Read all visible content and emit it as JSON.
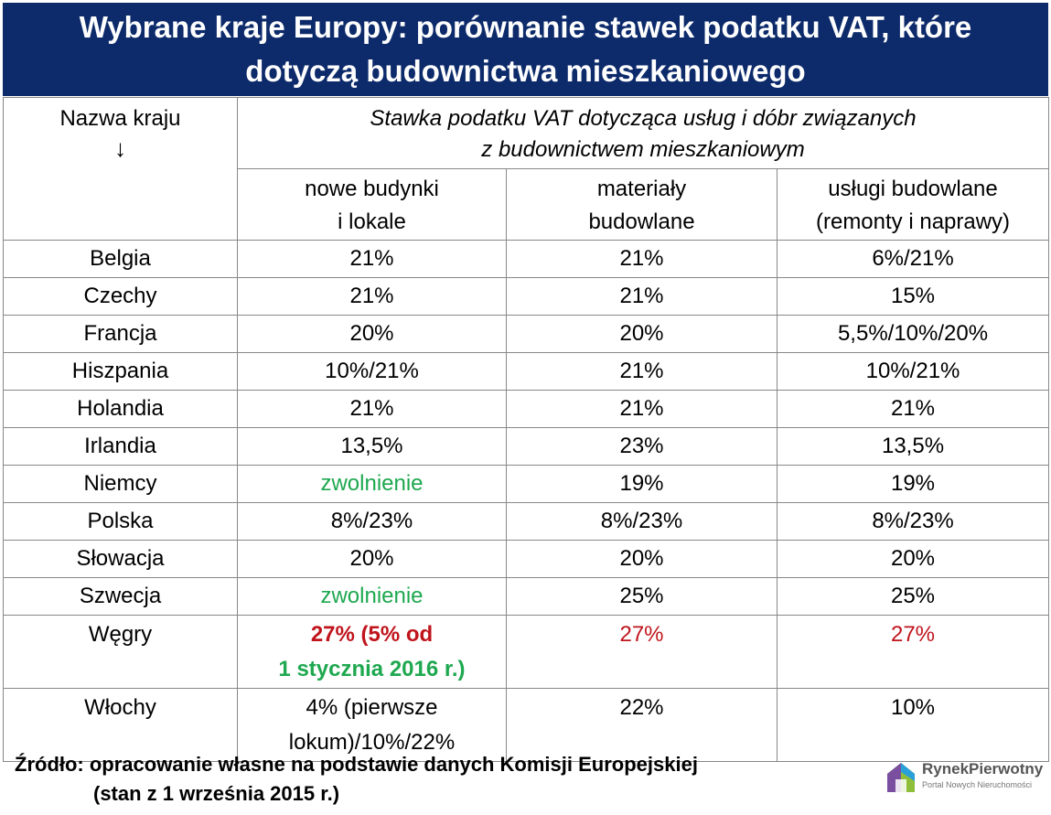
{
  "title": {
    "line1": "Wybrane kraje Europy: porównanie stawek podatku VAT, które",
    "line2": "dotyczą budownictwa mieszkaniowego"
  },
  "header": {
    "country_col": "Nazwa kraju",
    "arrow": "↓",
    "group_line1": "Stawka podatku VAT dotycząca usług i dóbr związanych",
    "group_line2": "z budownictwem mieszkaniowym",
    "col1_line1": "nowe budynki",
    "col1_line2": "i lokale",
    "col2_line1": "materiały",
    "col2_line2": "budowlane",
    "col3_line1": "usługi budowlane",
    "col3_line2": "(remonty i naprawy)"
  },
  "rows": [
    {
      "country": "Belgia",
      "c1": "21%",
      "c2": "21%",
      "c3": "6%/21%"
    },
    {
      "country": "Czechy",
      "c1": "21%",
      "c2": "21%",
      "c3": "15%"
    },
    {
      "country": "Francja",
      "c1": "20%",
      "c2": "20%",
      "c3": "5,5%/10%/20%"
    },
    {
      "country": "Hiszpania",
      "c1": "10%/21%",
      "c2": "21%",
      "c3": "10%/21%"
    },
    {
      "country": "Holandia",
      "c1": "21%",
      "c2": "21%",
      "c3": "21%"
    },
    {
      "country": "Irlandia",
      "c1": "13,5%",
      "c2": "23%",
      "c3": "13,5%"
    },
    {
      "country": "Niemcy",
      "c1": "zwolnienie",
      "c2": "19%",
      "c3": "19%"
    },
    {
      "country": "Polska",
      "c1": "8%/23%",
      "c2": "8%/23%",
      "c3": "8%/23%"
    },
    {
      "country": "Słowacja",
      "c1": "20%",
      "c2": "20%",
      "c3": "20%"
    },
    {
      "country": "Szwecja",
      "c1": "zwolnienie",
      "c2": "25%",
      "c3": "25%"
    },
    {
      "country": "Węgry",
      "c1_line1": "27% (5% od",
      "c1_line2": "1 stycznia 2016 r.)",
      "c2": "27%",
      "c3": "27%"
    },
    {
      "country": "Włochy",
      "c1_line1": "4% (pierwsze",
      "c1_line2": "lokum)/10%/22%",
      "c2": "22%",
      "c3": "10%"
    }
  ],
  "source": {
    "line1": "Źródło: opracowanie własne na podstawie danych Komisji Europejskiej",
    "line2": "(stan z 1 września 2015 r.)"
  },
  "logo": {
    "name": "RynekPierwotny",
    "tagline": "Portal Nowych Nieruchomości"
  },
  "colors": {
    "title_bg": "#0d2b6b",
    "exempt_green": "#1ea84f",
    "hungary_red": "#c0141c"
  }
}
